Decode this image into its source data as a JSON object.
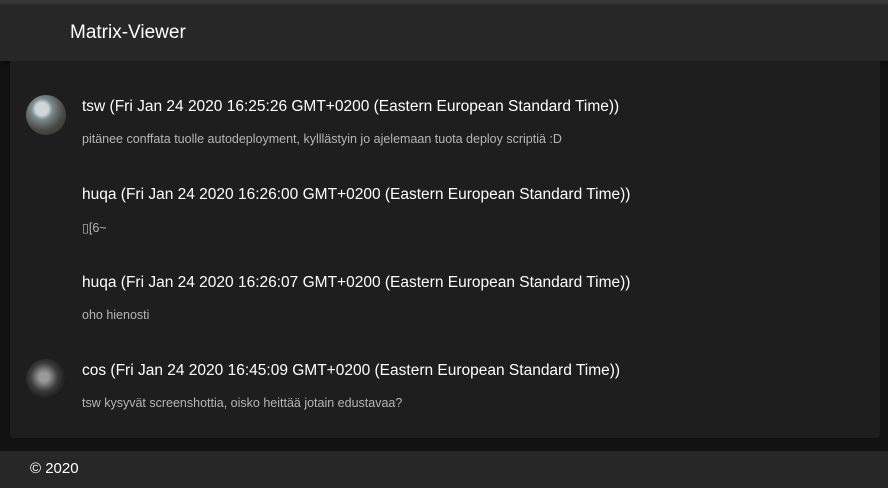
{
  "app": {
    "title": "Matrix-Viewer"
  },
  "messages": [
    {
      "author": "tsw (Fri Jan 24 2020 16:25:26 GMT+0200 (Eastern European Standard Time))",
      "text": "pitänee conffata tuolle autodeployment, kylllästyin jo ajelemaan tuota deploy scriptiä :D",
      "avatar": "avatar-photo-tsw"
    },
    {
      "author": "huqa (Fri Jan 24 2020 16:26:00 GMT+0200 (Eastern European Standard Time))",
      "text": "▯[6~"
    },
    {
      "author": "huqa (Fri Jan 24 2020 16:26:07 GMT+0200 (Eastern European Standard Time))",
      "text": "oho hienosti"
    },
    {
      "author": "cos (Fri Jan 24 2020 16:45:09 GMT+0200 (Eastern European Standard Time))",
      "text": "tsw kysyvät screenshottia, oisko heittää jotain edustavaa?",
      "avatar": "avatar-photo-cos"
    }
  ],
  "footer": {
    "copyright": "© 2020"
  }
}
